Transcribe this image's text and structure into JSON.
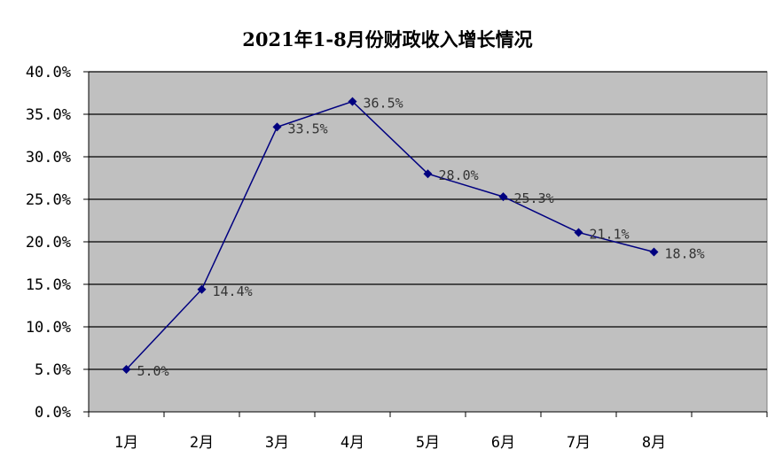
{
  "chart_data": {
    "type": "line",
    "title": "2021年1-8月份财政收入增长情况",
    "categories": [
      "1月",
      "2月",
      "3月",
      "4月",
      "5月",
      "6月",
      "7月",
      "8月"
    ],
    "series": [
      {
        "values": [
          5.0,
          14.4,
          33.5,
          36.5,
          28.0,
          25.3,
          21.1,
          18.8
        ]
      }
    ],
    "data_labels": [
      "5.0%",
      "14.4%",
      "33.5%",
      "36.5%",
      "28.0%",
      "25.3%",
      "21.1%",
      "18.8%"
    ],
    "y_tick_labels": [
      "0.0%",
      "5.0%",
      "10.0%",
      "15.0%",
      "20.0%",
      "25.0%",
      "30.0%",
      "35.0%",
      "40.0%"
    ],
    "ylim": [
      0,
      40
    ],
    "y_tick_step": 5,
    "grid": true,
    "legend": "none",
    "colors": {
      "plot_background": "#c0c0c0",
      "series_line": "#000080",
      "gridline": "#000000"
    }
  }
}
